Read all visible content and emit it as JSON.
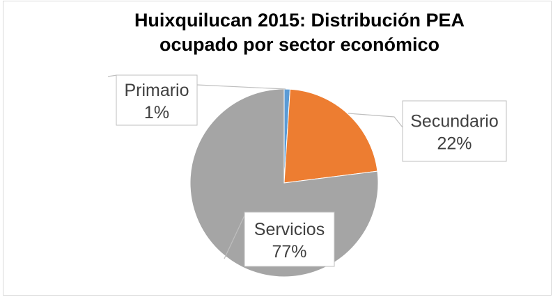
{
  "chart_data": {
    "type": "pie",
    "title": "Huixquilucan 2015: Distribución PEA ocupado por sector económico",
    "categories": [
      "Primario",
      "Secundario",
      "Servicios"
    ],
    "values": [
      1,
      22,
      77
    ],
    "value_labels": [
      "1%",
      "22%",
      "77%"
    ],
    "colors": [
      "#5b9bd5",
      "#ed7d31",
      "#a5a5a5"
    ]
  }
}
